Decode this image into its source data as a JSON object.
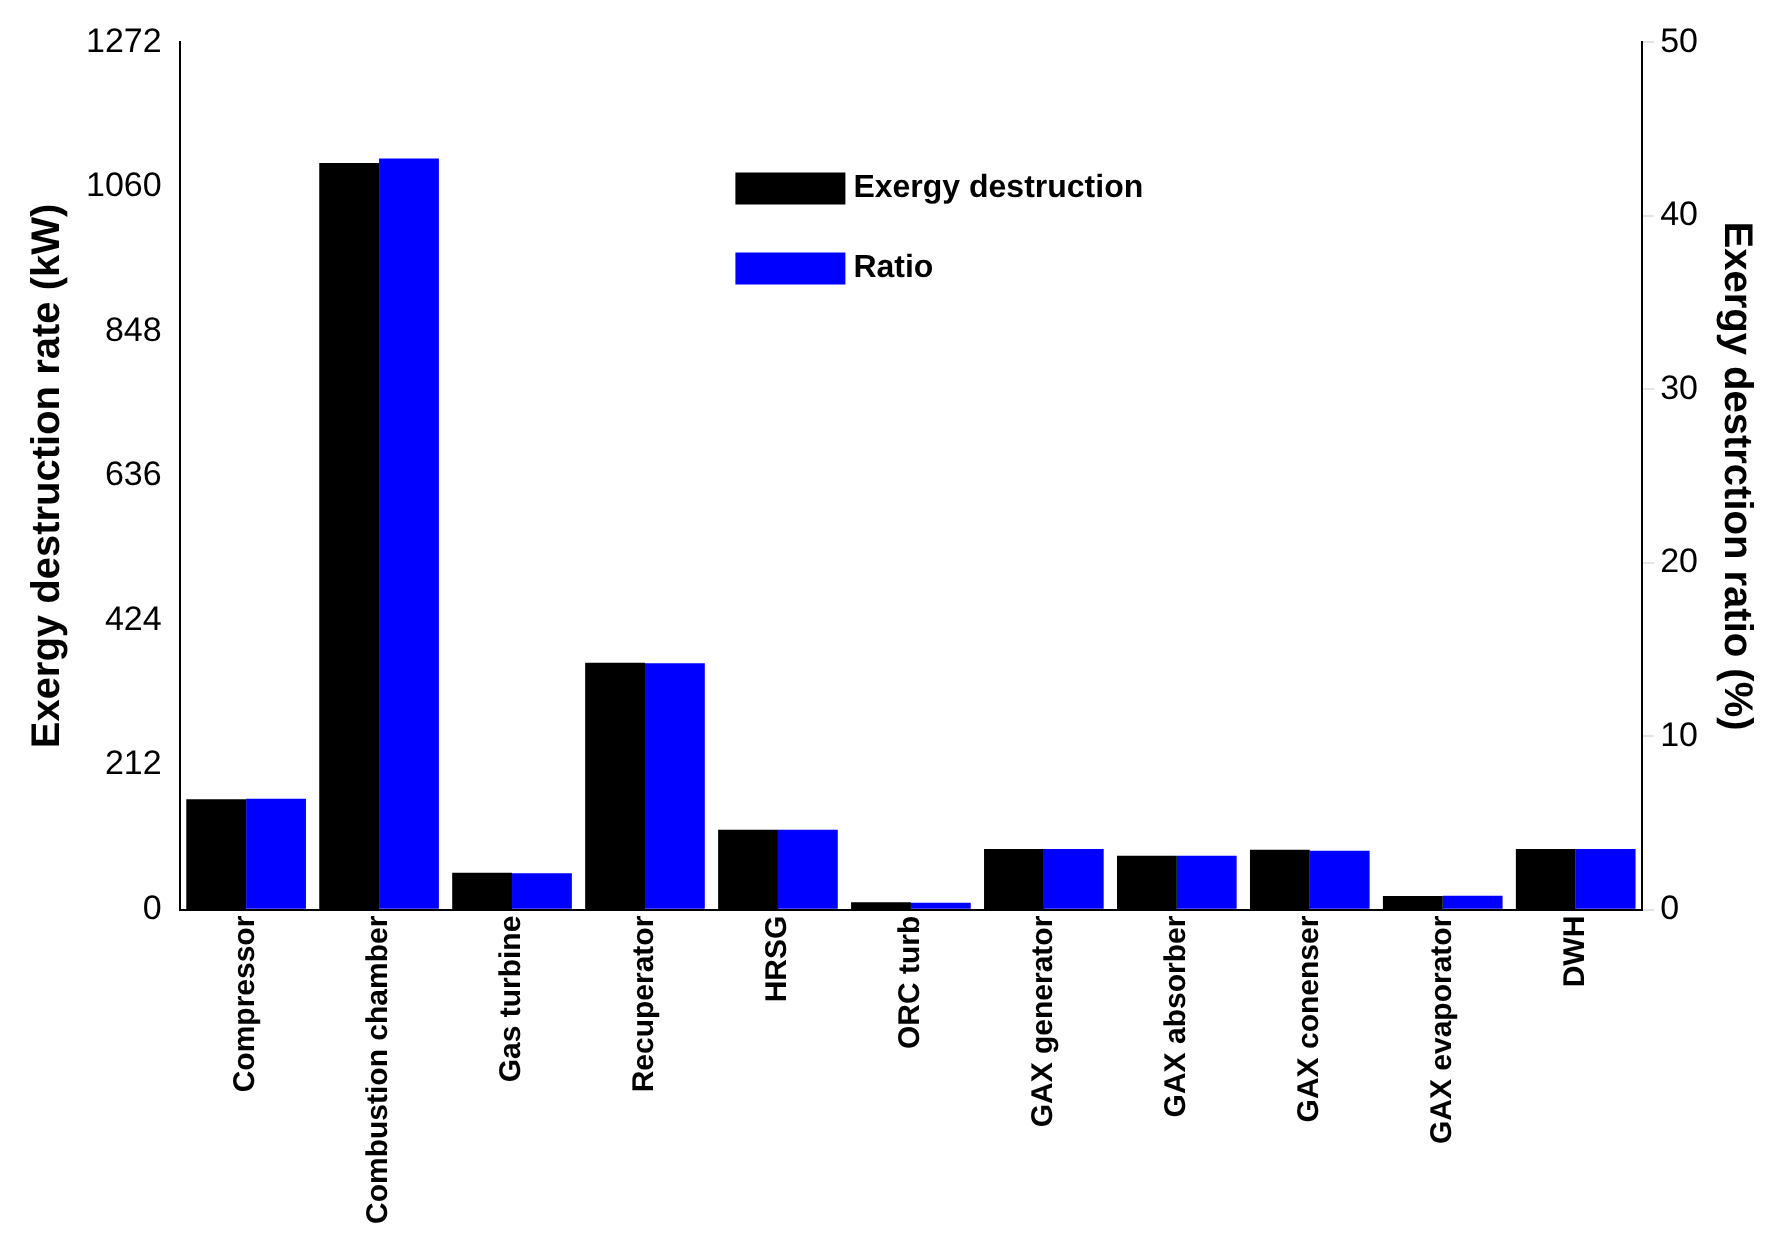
{
  "chart_data": {
    "type": "bar",
    "categories": [
      "Compressor",
      "Combustion chamber",
      "Gas turbine",
      "Recuperator",
      "HRSG",
      "ORC turb",
      "GAX generator",
      "GAX absorber",
      "GAX conenser",
      "GAX evaporator",
      "DWH"
    ],
    "series": [
      {
        "name": "Exergy destruction",
        "color": "#000000",
        "values": [
          162,
          1095,
          54,
          362,
          117,
          11,
          89,
          79,
          88,
          20,
          89
        ]
      },
      {
        "name": "Ratio",
        "color": "#0000ff",
        "axis": "y2",
        "values": [
          6.4,
          43.3,
          2.1,
          14.2,
          4.6,
          0.4,
          3.5,
          3.1,
          3.4,
          0.8,
          3.5
        ]
      }
    ],
    "ylabel": "Exergy destruction rate (kW)",
    "y2label": "Exergy destrction ratio (%)",
    "ylim": [
      0,
      1272
    ],
    "yticks": [
      0,
      212,
      424,
      636,
      848,
      1060,
      1272
    ],
    "y2lim": [
      0,
      50
    ],
    "y2ticks": [
      0,
      10,
      20,
      30,
      40,
      50
    ],
    "grid": false,
    "legend": "top right"
  }
}
